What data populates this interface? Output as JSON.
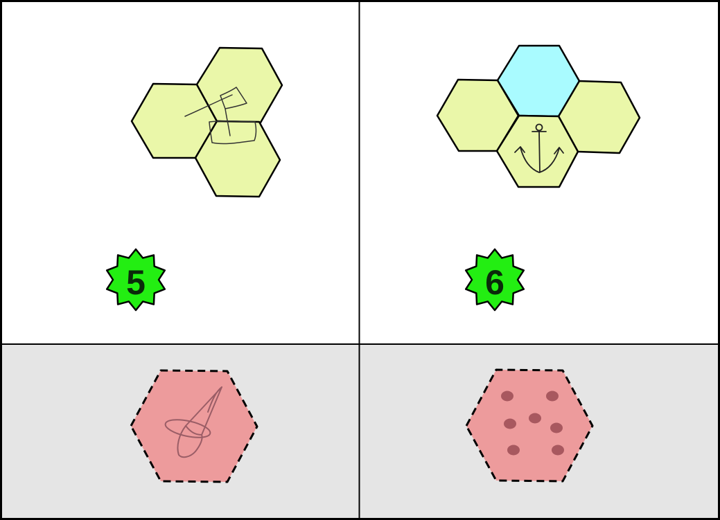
{
  "colors": {
    "page_background": "#ffffff",
    "bottom_panel_background": "#e5e5e5",
    "border": "#000000",
    "hex_yellow": "#eaf7a9",
    "hex_cyan": "#a9fbff",
    "hex_pink": "#ed9b9c",
    "badge_green": "#23ee12",
    "badge_text": "#0a2a0a",
    "sketch": "#333333",
    "pink_sketch": "#9a5d66",
    "dot": "#a8585f"
  },
  "panels": [
    {
      "badge": {
        "label": "5",
        "shape": "star-badge"
      },
      "tiles": [
        "yellow",
        "yellow",
        "yellow"
      ],
      "sketch_icon": "flag-icon",
      "answer_tile": {
        "color": "pink",
        "border": "dashed",
        "icon": "witch-hat-icon"
      }
    },
    {
      "badge": {
        "label": "6",
        "shape": "star-badge"
      },
      "tiles": [
        "yellow",
        "cyan",
        "yellow",
        "yellow"
      ],
      "sketch_icon": "anchor-icon",
      "answer_tile": {
        "color": "pink",
        "border": "dashed",
        "icon": "dots-icon",
        "dot_count": 6
      }
    }
  ]
}
